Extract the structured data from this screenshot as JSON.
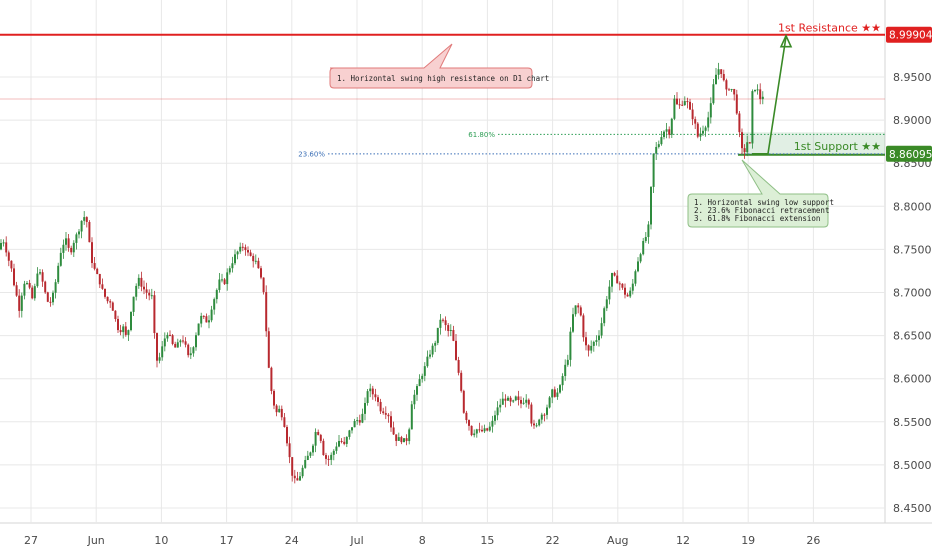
{
  "chart_data": {
    "type": "candlestick",
    "y_ticks": [
      "8.95000",
      "8.90000",
      "8.85000",
      "8.80000",
      "8.75000",
      "8.70000",
      "8.65000",
      "8.60000",
      "8.55000",
      "8.50000",
      "8.45000"
    ],
    "ylim": [
      8.435,
      9.015
    ],
    "x_ticks": [
      "27",
      "Jun",
      "10",
      "17",
      "24",
      "Jul",
      "8",
      "15",
      "22",
      "Aug",
      "12",
      "19",
      "26"
    ],
    "levels": {
      "resistance": {
        "label": "1st Resistance ★★",
        "value": 8.99904,
        "badge": "8.99904",
        "color": "#e02020"
      },
      "support": {
        "label": "1st Support ★★",
        "value": 8.86095,
        "badge": "8.86095",
        "color": "#3a8a27"
      },
      "swing_high_line": 8.9245
    },
    "fibonacci": [
      {
        "label": "61.80%",
        "value": 8.8835,
        "color": "#2e9e55"
      },
      {
        "label": "23.60%",
        "value": 8.8608,
        "color": "#3b6fb6"
      }
    ],
    "annotations": {
      "resistance_note": [
        "1. Horizontal swing high resistance on D1 chart"
      ],
      "support_note": [
        "1. Horizontal swing low support",
        "2. 23.6% Fibonacci retracement",
        "3. 61.8% Fibonacci extension"
      ]
    },
    "colors": {
      "up": "#2e8b3e",
      "down": "#b8292f",
      "grid": "#e8e8e8"
    },
    "price_path": [
      [
        0,
        8.75
      ],
      [
        2,
        8.765
      ],
      [
        5,
        8.755
      ],
      [
        8,
        8.74
      ],
      [
        11,
        8.73
      ],
      [
        13,
        8.715
      ],
      [
        16,
        8.7
      ],
      [
        19,
        8.68
      ],
      [
        22,
        8.7
      ],
      [
        25,
        8.715
      ],
      [
        29,
        8.705
      ],
      [
        33,
        8.69
      ],
      [
        37,
        8.725
      ],
      [
        41,
        8.72
      ],
      [
        45,
        8.7
      ],
      [
        49,
        8.685
      ],
      [
        54,
        8.7
      ],
      [
        58,
        8.73
      ],
      [
        62,
        8.755
      ],
      [
        66,
        8.76
      ],
      [
        70,
        8.745
      ],
      [
        74,
        8.76
      ],
      [
        78,
        8.77
      ],
      [
        82,
        8.785
      ],
      [
        86,
        8.79
      ],
      [
        88,
        8.77
      ],
      [
        91,
        8.74
      ],
      [
        95,
        8.725
      ],
      [
        99,
        8.715
      ],
      [
        103,
        8.7
      ],
      [
        107,
        8.69
      ],
      [
        111,
        8.69
      ],
      [
        115,
        8.67
      ],
      [
        119,
        8.655
      ],
      [
        123,
        8.66
      ],
      [
        127,
        8.645
      ],
      [
        131,
        8.68
      ],
      [
        135,
        8.705
      ],
      [
        139,
        8.715
      ],
      [
        143,
        8.705
      ],
      [
        148,
        8.698
      ],
      [
        152,
        8.695
      ],
      [
        156,
        8.62
      ],
      [
        160,
        8.625
      ],
      [
        164,
        8.645
      ],
      [
        168,
        8.655
      ],
      [
        172,
        8.64
      ],
      [
        176,
        8.635
      ],
      [
        180,
        8.645
      ],
      [
        184,
        8.645
      ],
      [
        188,
        8.625
      ],
      [
        192,
        8.632
      ],
      [
        196,
        8.652
      ],
      [
        200,
        8.672
      ],
      [
        204,
        8.67
      ],
      [
        208,
        8.665
      ],
      [
        212,
        8.685
      ],
      [
        216,
        8.7
      ],
      [
        220,
        8.715
      ],
      [
        224,
        8.71
      ],
      [
        228,
        8.725
      ],
      [
        232,
        8.735
      ],
      [
        236,
        8.745
      ],
      [
        240,
        8.75
      ],
      [
        244,
        8.755
      ],
      [
        248,
        8.745
      ],
      [
        252,
        8.74
      ],
      [
        256,
        8.735
      ],
      [
        260,
        8.72
      ],
      [
        264,
        8.7
      ],
      [
        268,
        8.62
      ],
      [
        272,
        8.58
      ],
      [
        276,
        8.56
      ],
      [
        280,
        8.565
      ],
      [
        284,
        8.55
      ],
      [
        288,
        8.52
      ],
      [
        292,
        8.49
      ],
      [
        296,
        8.478
      ],
      [
        300,
        8.488
      ],
      [
        304,
        8.5
      ],
      [
        308,
        8.51
      ],
      [
        312,
        8.52
      ],
      [
        316,
        8.54
      ],
      [
        320,
        8.535
      ],
      [
        324,
        8.51
      ],
      [
        328,
        8.505
      ],
      [
        332,
        8.512
      ],
      [
        336,
        8.522
      ],
      [
        340,
        8.53
      ],
      [
        344,
        8.522
      ],
      [
        348,
        8.535
      ],
      [
        352,
        8.545
      ],
      [
        356,
        8.552
      ],
      [
        360,
        8.552
      ],
      [
        364,
        8.562
      ],
      [
        368,
        8.59
      ],
      [
        372,
        8.583
      ],
      [
        376,
        8.58
      ],
      [
        380,
        8.565
      ],
      [
        384,
        8.562
      ],
      [
        388,
        8.56
      ],
      [
        392,
        8.54
      ],
      [
        396,
        8.53
      ],
      [
        400,
        8.53
      ],
      [
        404,
        8.528
      ],
      [
        408,
        8.53
      ],
      [
        412,
        8.575
      ],
      [
        416,
        8.585
      ],
      [
        420,
        8.6
      ],
      [
        424,
        8.61
      ],
      [
        428,
        8.625
      ],
      [
        432,
        8.635
      ],
      [
        436,
        8.645
      ],
      [
        440,
        8.67
      ],
      [
        444,
        8.665
      ],
      [
        448,
        8.655
      ],
      [
        452,
        8.655
      ],
      [
        456,
        8.62
      ],
      [
        460,
        8.6
      ],
      [
        464,
        8.56
      ],
      [
        468,
        8.55
      ],
      [
        472,
        8.535
      ],
      [
        476,
        8.542
      ],
      [
        480,
        8.538
      ],
      [
        484,
        8.54
      ],
      [
        488,
        8.54
      ],
      [
        492,
        8.548
      ],
      [
        496,
        8.562
      ],
      [
        500,
        8.57
      ],
      [
        504,
        8.578
      ],
      [
        508,
        8.575
      ],
      [
        512,
        8.57
      ],
      [
        516,
        8.578
      ],
      [
        520,
        8.57
      ],
      [
        524,
        8.575
      ],
      [
        528,
        8.58
      ],
      [
        532,
        8.545
      ],
      [
        536,
        8.542
      ],
      [
        540,
        8.558
      ],
      [
        544,
        8.56
      ],
      [
        548,
        8.57
      ],
      [
        552,
        8.585
      ],
      [
        556,
        8.58
      ],
      [
        560,
        8.59
      ],
      [
        564,
        8.61
      ],
      [
        568,
        8.625
      ],
      [
        572,
        8.67
      ],
      [
        576,
        8.685
      ],
      [
        580,
        8.68
      ],
      [
        584,
        8.645
      ],
      [
        588,
        8.63
      ],
      [
        592,
        8.64
      ],
      [
        596,
        8.645
      ],
      [
        600,
        8.655
      ],
      [
        604,
        8.68
      ],
      [
        608,
        8.7
      ],
      [
        612,
        8.72
      ],
      [
        616,
        8.715
      ],
      [
        620,
        8.71
      ],
      [
        624,
        8.7
      ],
      [
        628,
        8.695
      ],
      [
        632,
        8.705
      ],
      [
        636,
        8.73
      ],
      [
        640,
        8.745
      ],
      [
        644,
        8.76
      ],
      [
        648,
        8.77
      ],
      [
        650,
        8.8
      ],
      [
        652,
        8.84
      ],
      [
        654,
        8.865
      ],
      [
        658,
        8.87
      ],
      [
        662,
        8.885
      ],
      [
        666,
        8.89
      ],
      [
        670,
        8.885
      ],
      [
        674,
        8.925
      ],
      [
        678,
        8.915
      ],
      [
        682,
        8.92
      ],
      [
        686,
        8.925
      ],
      [
        690,
        8.91
      ],
      [
        694,
        8.9
      ],
      [
        698,
        8.88
      ],
      [
        702,
        8.888
      ],
      [
        706,
        8.895
      ],
      [
        710,
        8.91
      ],
      [
        714,
        8.945
      ],
      [
        718,
        8.96
      ],
      [
        722,
        8.955
      ],
      [
        726,
        8.932
      ],
      [
        730,
        8.94
      ],
      [
        734,
        8.93
      ],
      [
        738,
        8.902
      ],
      [
        740,
        8.875
      ],
      [
        742,
        8.865
      ],
      [
        744,
        8.862
      ],
      [
        746,
        8.87
      ],
      [
        748,
        8.878
      ],
      [
        750,
        8.87
      ],
      [
        752,
        8.93
      ],
      [
        756,
        8.94
      ],
      [
        760,
        8.925
      ],
      [
        764,
        8.93
      ]
    ]
  }
}
